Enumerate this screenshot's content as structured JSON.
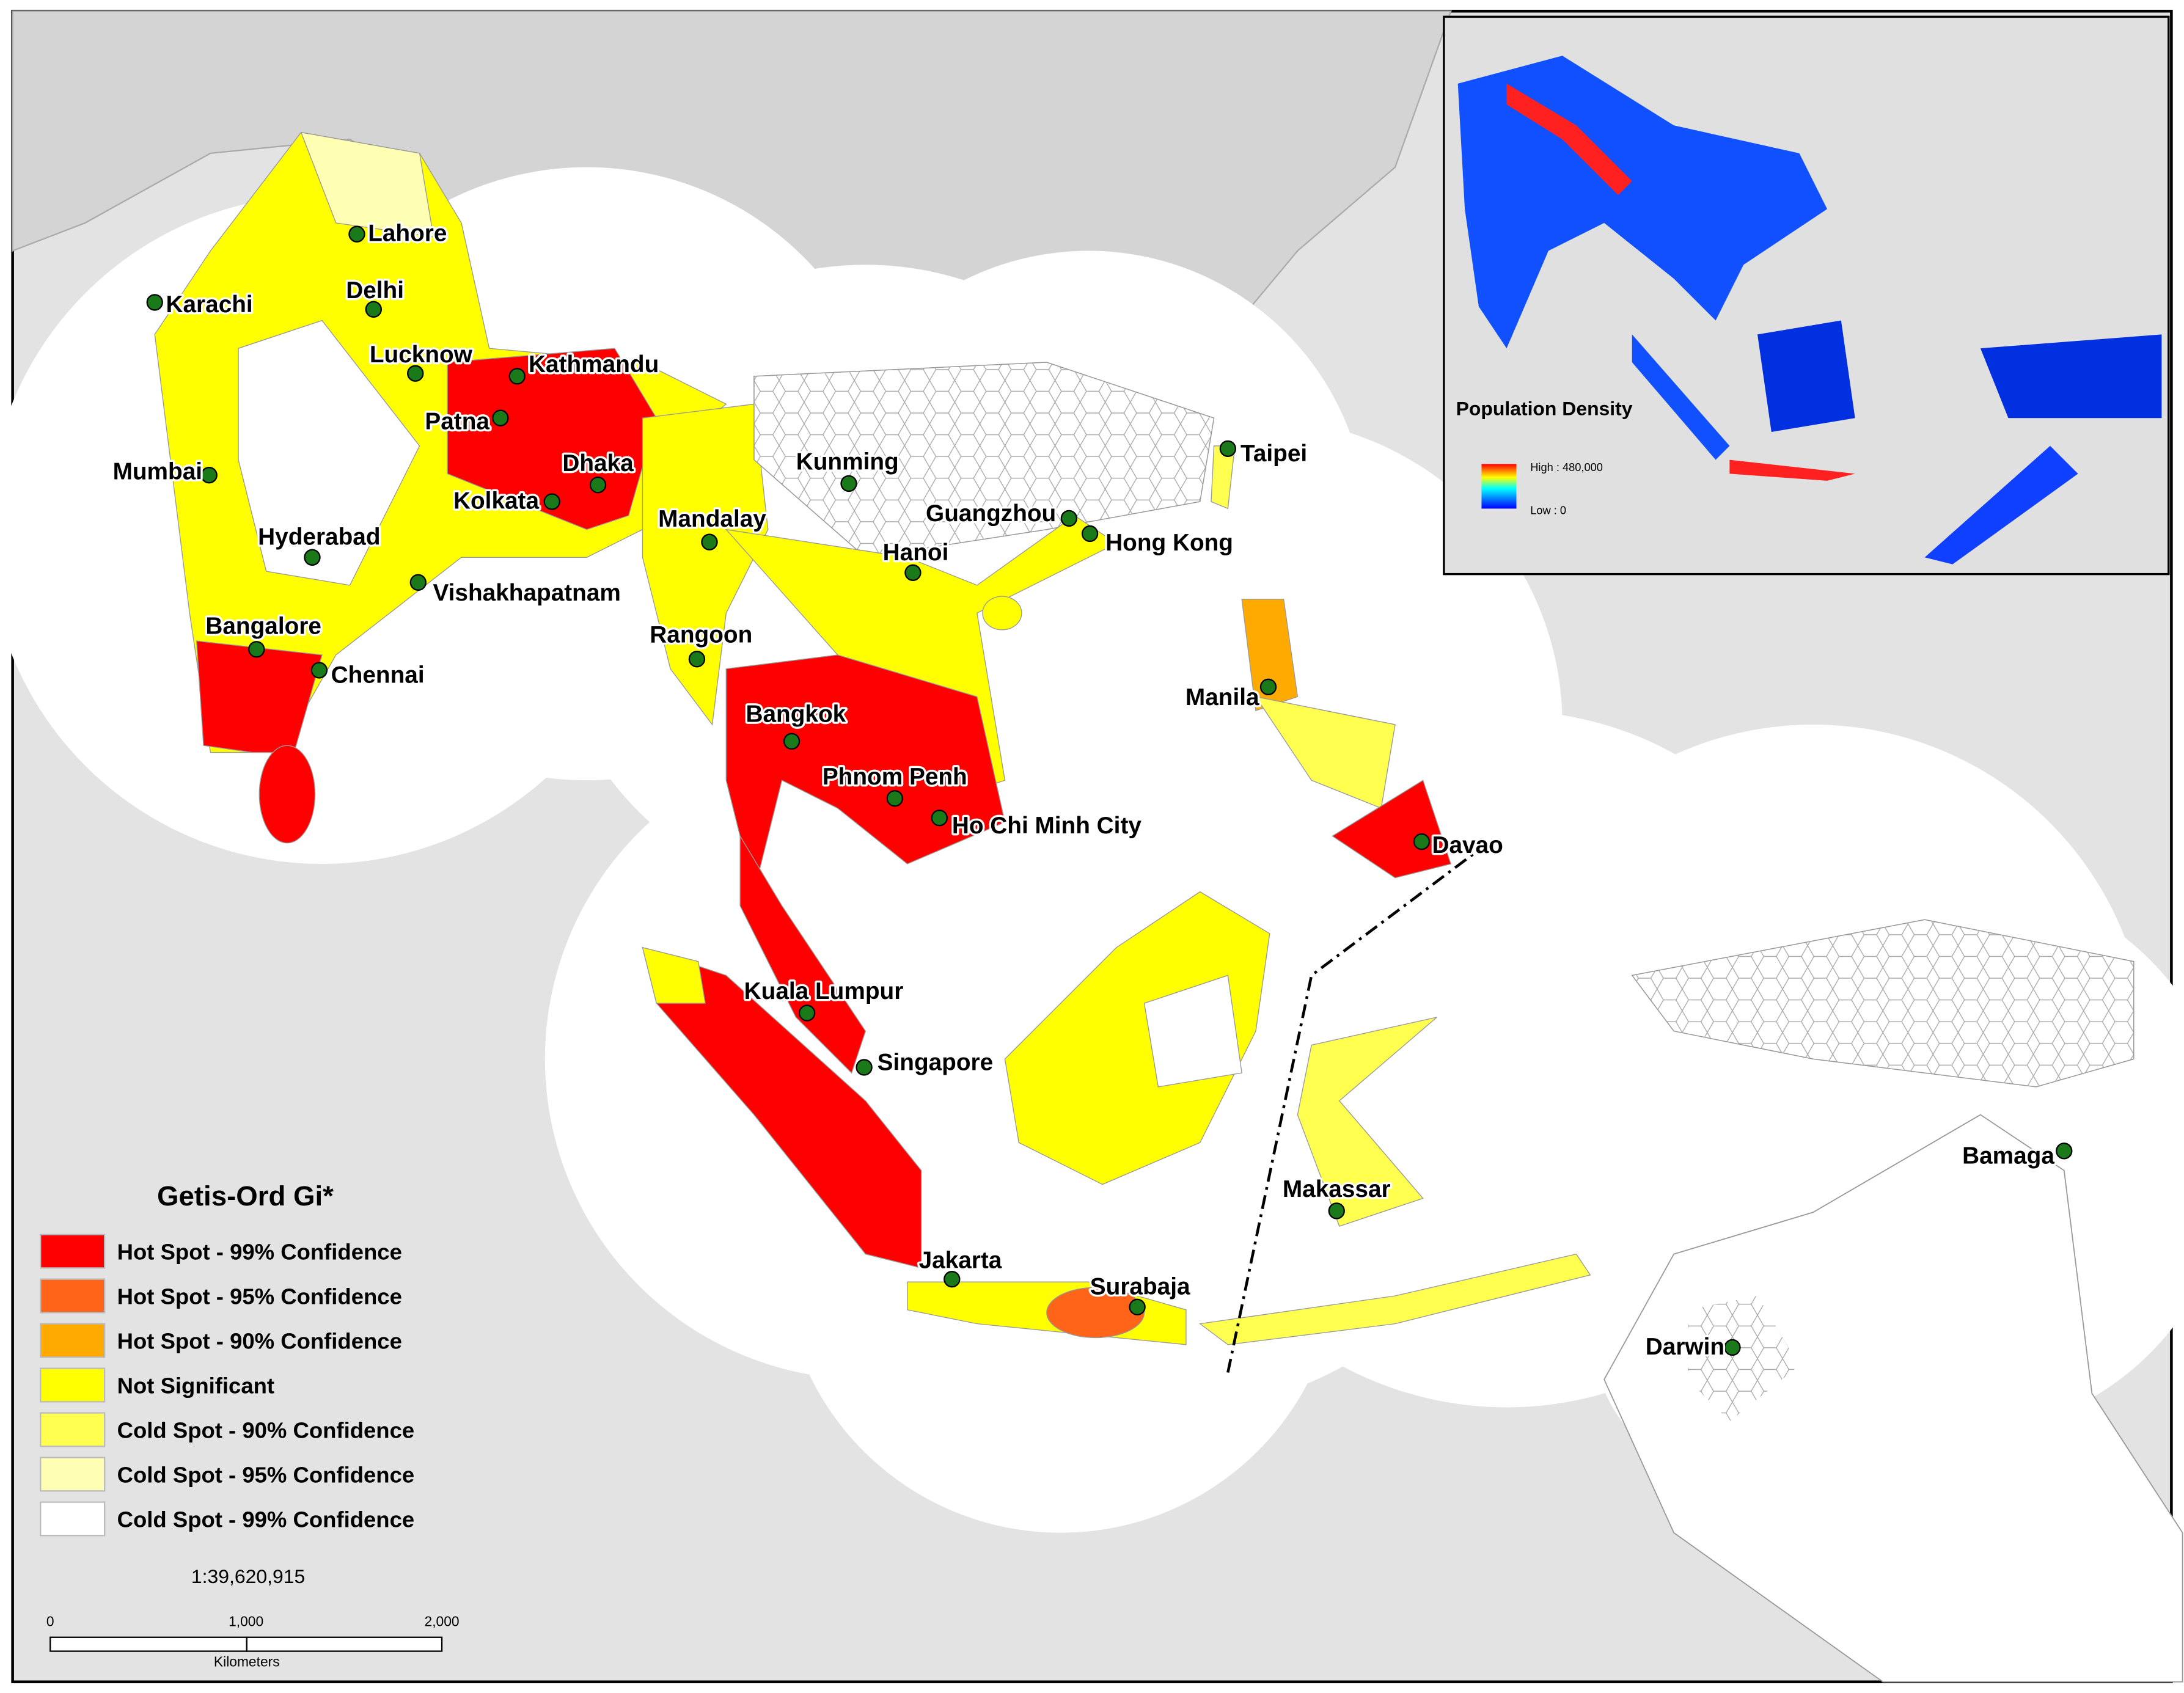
{
  "legend": {
    "title": "Getis-Ord Gi*",
    "items": [
      {
        "label": "Hot Spot - 99% Confidence",
        "color": "#ff0000"
      },
      {
        "label": "Hot Spot - 95% Confidence",
        "color": "#ff6418"
      },
      {
        "label": "Hot Spot - 90% Confidence",
        "color": "#ffaa00"
      },
      {
        "label": "Not Significant",
        "color": "#ffff00"
      },
      {
        "label": "Cold Spot - 90% Confidence",
        "color": "#ffff50"
      },
      {
        "label": "Cold Spot - 95% Confidence",
        "color": "#ffffb4"
      },
      {
        "label": "Cold Spot - 99% Confidence",
        "color": "#ffffff"
      }
    ]
  },
  "cities": [
    "Lahore",
    "Karachi",
    "Delhi",
    "Lucknow",
    "Kathmandu",
    "Patna",
    "Dhaka",
    "Kolkata",
    "Mumbai",
    "Hyderabad",
    "Vishakhapatnam",
    "Bangalore",
    "Chennai",
    "Mandalay",
    "Kunming",
    "Rangoon",
    "Guangzhou",
    "Hong Kong",
    "Hanoi",
    "Taipei",
    "Bangkok",
    "Phnom Penh",
    "Ho Chi Minh City",
    "Manila",
    "Davao",
    "Kuala Lumpur",
    "Singapore",
    "Makassar",
    "Jakarta",
    "Surabaja",
    "Bamaga",
    "Darwin"
  ],
  "scale": {
    "ratio": "1:39,620,915",
    "ticks": [
      "0",
      "1,000",
      "2,000"
    ],
    "unit": "Kilometers"
  },
  "inset": {
    "title": "Population Density",
    "high_label": "High : 480,000",
    "low_label": "Low : 0"
  }
}
